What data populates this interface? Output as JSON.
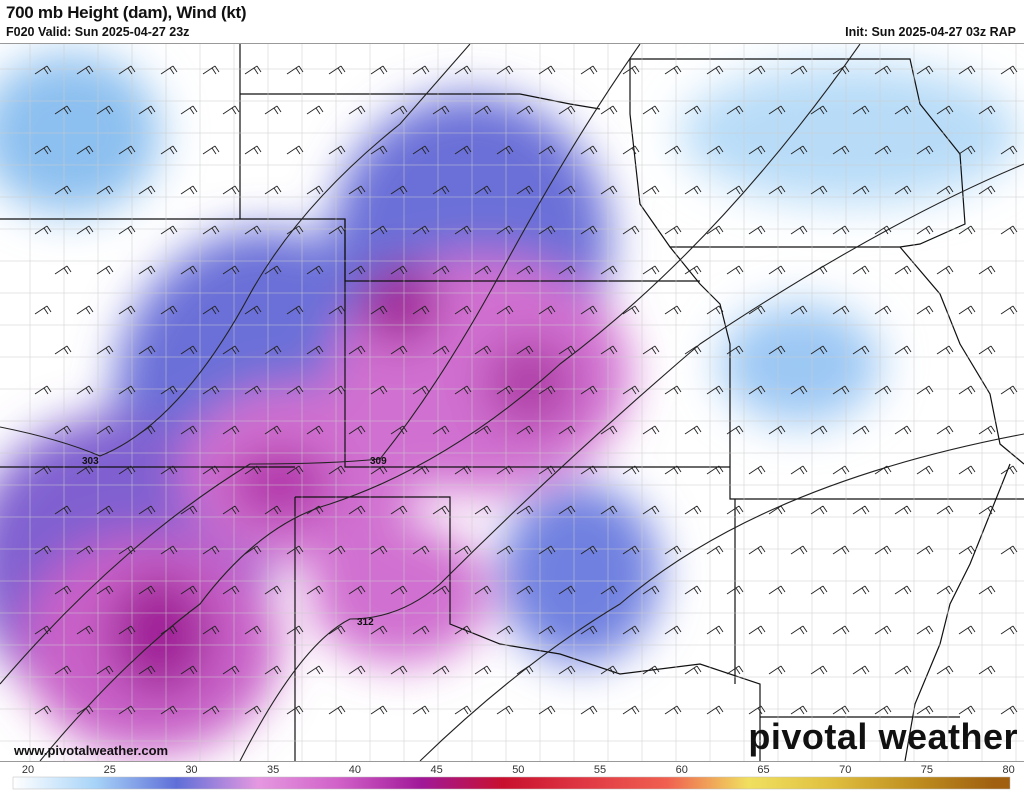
{
  "header": {
    "title": "700 mb Height (dam), Wind (kt)",
    "valid": "F020 Valid: Sun 2025-04-27 23z",
    "init": "Init: Sun 2025-04-27 03z RAP"
  },
  "watermark": {
    "url": "www.pivotalweather.com",
    "logo": "pivotal weather"
  },
  "contours": [
    {
      "label": "303"
    },
    {
      "label": "309"
    },
    {
      "label": "312"
    }
  ],
  "colorbar": {
    "ticks": [
      "20",
      "25",
      "30",
      "35",
      "40",
      "45",
      "50",
      "55",
      "60",
      "65",
      "70",
      "75",
      "80"
    ],
    "min": 20,
    "max": 81,
    "colors": [
      "#ffffff",
      "#a8d4f8",
      "#5f6fd8",
      "#e598e0",
      "#d060c8",
      "#a01898",
      "#c8102e",
      "#e03844",
      "#f06050",
      "#f0e060",
      "#e0c040",
      "#c09020",
      "#a06010"
    ]
  }
}
